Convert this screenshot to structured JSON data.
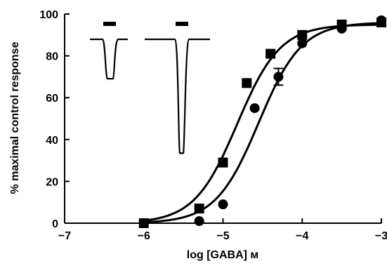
{
  "chart_data": {
    "type": "scatter",
    "xlabel": "log [GABA] м",
    "ylabel": "% maximal control response",
    "xlim": [
      -7,
      -3
    ],
    "ylim": [
      0,
      100
    ],
    "x_ticks": [
      -7,
      -6,
      -5,
      -4,
      -3
    ],
    "x_tick_labels": [
      "−7",
      "−6",
      "−5",
      "−4",
      "−3"
    ],
    "y_ticks": [
      0,
      20,
      40,
      60,
      80,
      100
    ],
    "y_tick_labels": [
      "0",
      "20",
      "40",
      "60",
      "80",
      "100"
    ],
    "grid": false,
    "series": [
      {
        "marker": "square",
        "x": [
          -6.0,
          -5.3,
          -5.0,
          -4.7,
          -4.4,
          -4.0,
          -3.5,
          -3.0
        ],
        "y": [
          0,
          7,
          29,
          67,
          81,
          90,
          95,
          96
        ],
        "fit": {
          "bottom": 0,
          "top": 95,
          "log_ec50": -4.82,
          "hill": 1.6
        }
      },
      {
        "marker": "circle",
        "x": [
          -6.0,
          -5.3,
          -5.0,
          -4.6,
          -4.3,
          -4.0,
          -3.5,
          -3.0
        ],
        "y": [
          0,
          1,
          9,
          55,
          70,
          86,
          93,
          97
        ],
        "fit": {
          "bottom": 0,
          "top": 96,
          "log_ec50": -4.55,
          "hill": 1.6
        },
        "error_bars": [
          {
            "x": -4.3,
            "low": 66,
            "high": 74
          }
        ]
      }
    ],
    "inset_traces": [
      {
        "marker": "bar",
        "depth": 0.27
      },
      {
        "marker": "bar",
        "depth": 0.78
      }
    ],
    "colors": {
      "ink": "#000000",
      "background": "#ffffff"
    }
  }
}
